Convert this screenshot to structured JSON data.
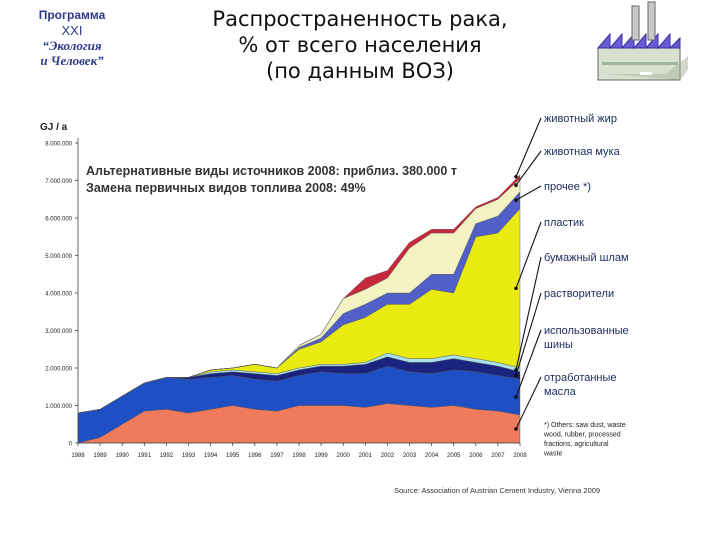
{
  "logo": {
    "line1": "Программа",
    "line2": "XXI",
    "line3": "“Экология",
    "line4": "и Человек”"
  },
  "slide_title": {
    "line1": "Распространенность рака,",
    "line2": "% от всего населения",
    "line3": "(по данным ВОЗ)"
  },
  "icons": {
    "logo": "program-logo",
    "factory": "factory-icon"
  },
  "chart_data": {
    "type": "area",
    "stacked": true,
    "ylabel": "GJ / a",
    "ylim": [
      0,
      8000000
    ],
    "yticks": [
      0,
      1000000,
      2000000,
      3000000,
      4000000,
      5000000,
      6000000,
      7000000,
      8000000
    ],
    "ytick_labels": [
      "0",
      "1.000.000",
      "2.000.000",
      "3.000.000",
      "4.000.000",
      "5.000.000",
      "6.000.000",
      "7.000.000",
      "8.000.000"
    ],
    "x": [
      "1988",
      "1989",
      "1990",
      "1991",
      "1992",
      "1993",
      "1994",
      "1995",
      "1996",
      "1997",
      "1998",
      "1999",
      "2000",
      "2001",
      "2002",
      "2003",
      "2004",
      "2005",
      "2006",
      "2007",
      "2008"
    ],
    "annotation_line1": "Альтернативные виды источников 2008: приблиз. 380.000 т",
    "annotation_line2": "Замена первичных видов топлива  2008: 49%",
    "footnote": [
      "*) Others: saw dust, waste",
      "wood, rubber, processed",
      "fractions, agricultural",
      "waste"
    ],
    "source": "Source: Association of Austrian Cement Industry, Vienna 2009",
    "series": [
      {
        "name": "отработанные масла",
        "color": "#ef7a5c",
        "values": [
          0,
          150000,
          500000,
          850000,
          900000,
          800000,
          900000,
          1000000,
          900000,
          850000,
          1000000,
          1000000,
          1000000,
          950000,
          1050000,
          1000000,
          950000,
          1000000,
          900000,
          850000,
          750000
        ]
      },
      {
        "name": "использованные шины",
        "color": "#1f4fc4",
        "values": [
          800000,
          750000,
          750000,
          750000,
          850000,
          900000,
          850000,
          800000,
          800000,
          800000,
          800000,
          900000,
          850000,
          900000,
          1000000,
          900000,
          900000,
          950000,
          1000000,
          950000,
          950000
        ]
      },
      {
        "name": "растворители",
        "color": "#1a237e",
        "values": [
          0,
          0,
          0,
          0,
          0,
          50000,
          100000,
          100000,
          150000,
          150000,
          150000,
          150000,
          200000,
          250000,
          250000,
          250000,
          300000,
          300000,
          250000,
          250000,
          200000
        ]
      },
      {
        "name": "бумажный шлам",
        "color": "#a8e0ec",
        "values": [
          0,
          0,
          0,
          0,
          0,
          0,
          50000,
          50000,
          50000,
          50000,
          50000,
          50000,
          50000,
          50000,
          100000,
          100000,
          100000,
          100000,
          100000,
          100000,
          100000
        ]
      },
      {
        "name": "пластик",
        "color": "#e8ea10",
        "values": [
          0,
          0,
          0,
          0,
          0,
          0,
          50000,
          50000,
          200000,
          150000,
          500000,
          600000,
          1050000,
          1200000,
          1300000,
          1450000,
          1850000,
          1650000,
          3250000,
          3450000,
          4250000
        ]
      },
      {
        "name": "прочее *)",
        "color": "#5060c8",
        "values": [
          0,
          0,
          0,
          0,
          0,
          0,
          0,
          0,
          0,
          0,
          50000,
          100000,
          300000,
          350000,
          300000,
          300000,
          400000,
          500000,
          350000,
          450000,
          450000
        ]
      },
      {
        "name": "животная мука",
        "color": "#f2f2c2",
        "values": [
          0,
          0,
          0,
          0,
          0,
          0,
          0,
          0,
          0,
          0,
          50000,
          100000,
          400000,
          400000,
          400000,
          1200000,
          1100000,
          1100000,
          400000,
          450000,
          350000
        ]
      },
      {
        "name": "животный жир",
        "color": "#c8283c",
        "values": [
          0,
          0,
          0,
          0,
          0,
          0,
          0,
          0,
          0,
          0,
          0,
          0,
          0,
          300000,
          200000,
          150000,
          100000,
          100000,
          50000,
          50000,
          100000
        ]
      }
    ]
  }
}
